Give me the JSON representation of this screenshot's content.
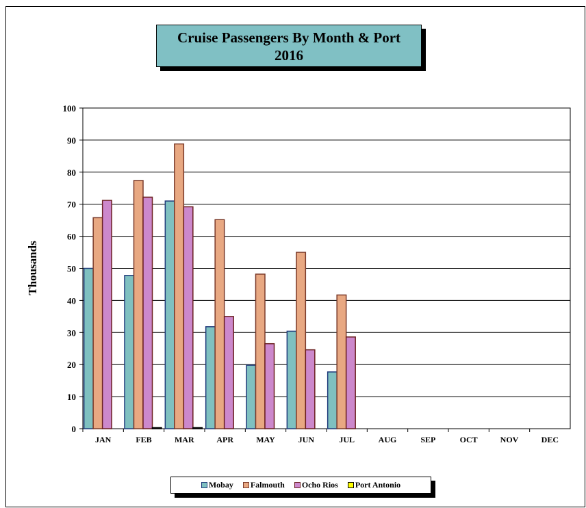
{
  "chart_data": {
    "type": "bar",
    "title_line1": "Cruise Passengers By Month & Port",
    "title_line2": "2016",
    "ylabel": "Thousands",
    "ylim": [
      0,
      100
    ],
    "yticks": [
      0,
      10,
      20,
      30,
      40,
      50,
      60,
      70,
      80,
      90,
      100
    ],
    "categories": [
      "JAN",
      "FEB",
      "MAR",
      "APR",
      "MAY",
      "JUN",
      "JUL",
      "AUG",
      "SEP",
      "OCT",
      "NOV",
      "DEC"
    ],
    "series": [
      {
        "name": "Mobay",
        "color": "#7fc0c0",
        "border": "#1f3a7a",
        "values": [
          50,
          47.8,
          71,
          31.8,
          19.8,
          30.4,
          17.7,
          null,
          null,
          null,
          null,
          null
        ]
      },
      {
        "name": "Falmouth",
        "color": "#e8a882",
        "border": "#7a3a2a",
        "values": [
          65.8,
          77.4,
          88.8,
          65.2,
          48.2,
          55,
          41.7,
          null,
          null,
          null,
          null,
          null
        ]
      },
      {
        "name": "Ocho Rios",
        "color": "#cc88cc",
        "border": "#6a1f1f",
        "values": [
          71.2,
          72.2,
          69.2,
          35,
          26.5,
          24.6,
          28.6,
          null,
          null,
          null,
          null,
          null
        ]
      },
      {
        "name": "Port Antonio",
        "color": "#ffff00",
        "border": "#000000",
        "values": [
          null,
          0.3,
          0.3,
          null,
          null,
          null,
          null,
          null,
          null,
          null,
          null,
          null
        ]
      }
    ],
    "grid": true,
    "legend_position": "bottom"
  }
}
